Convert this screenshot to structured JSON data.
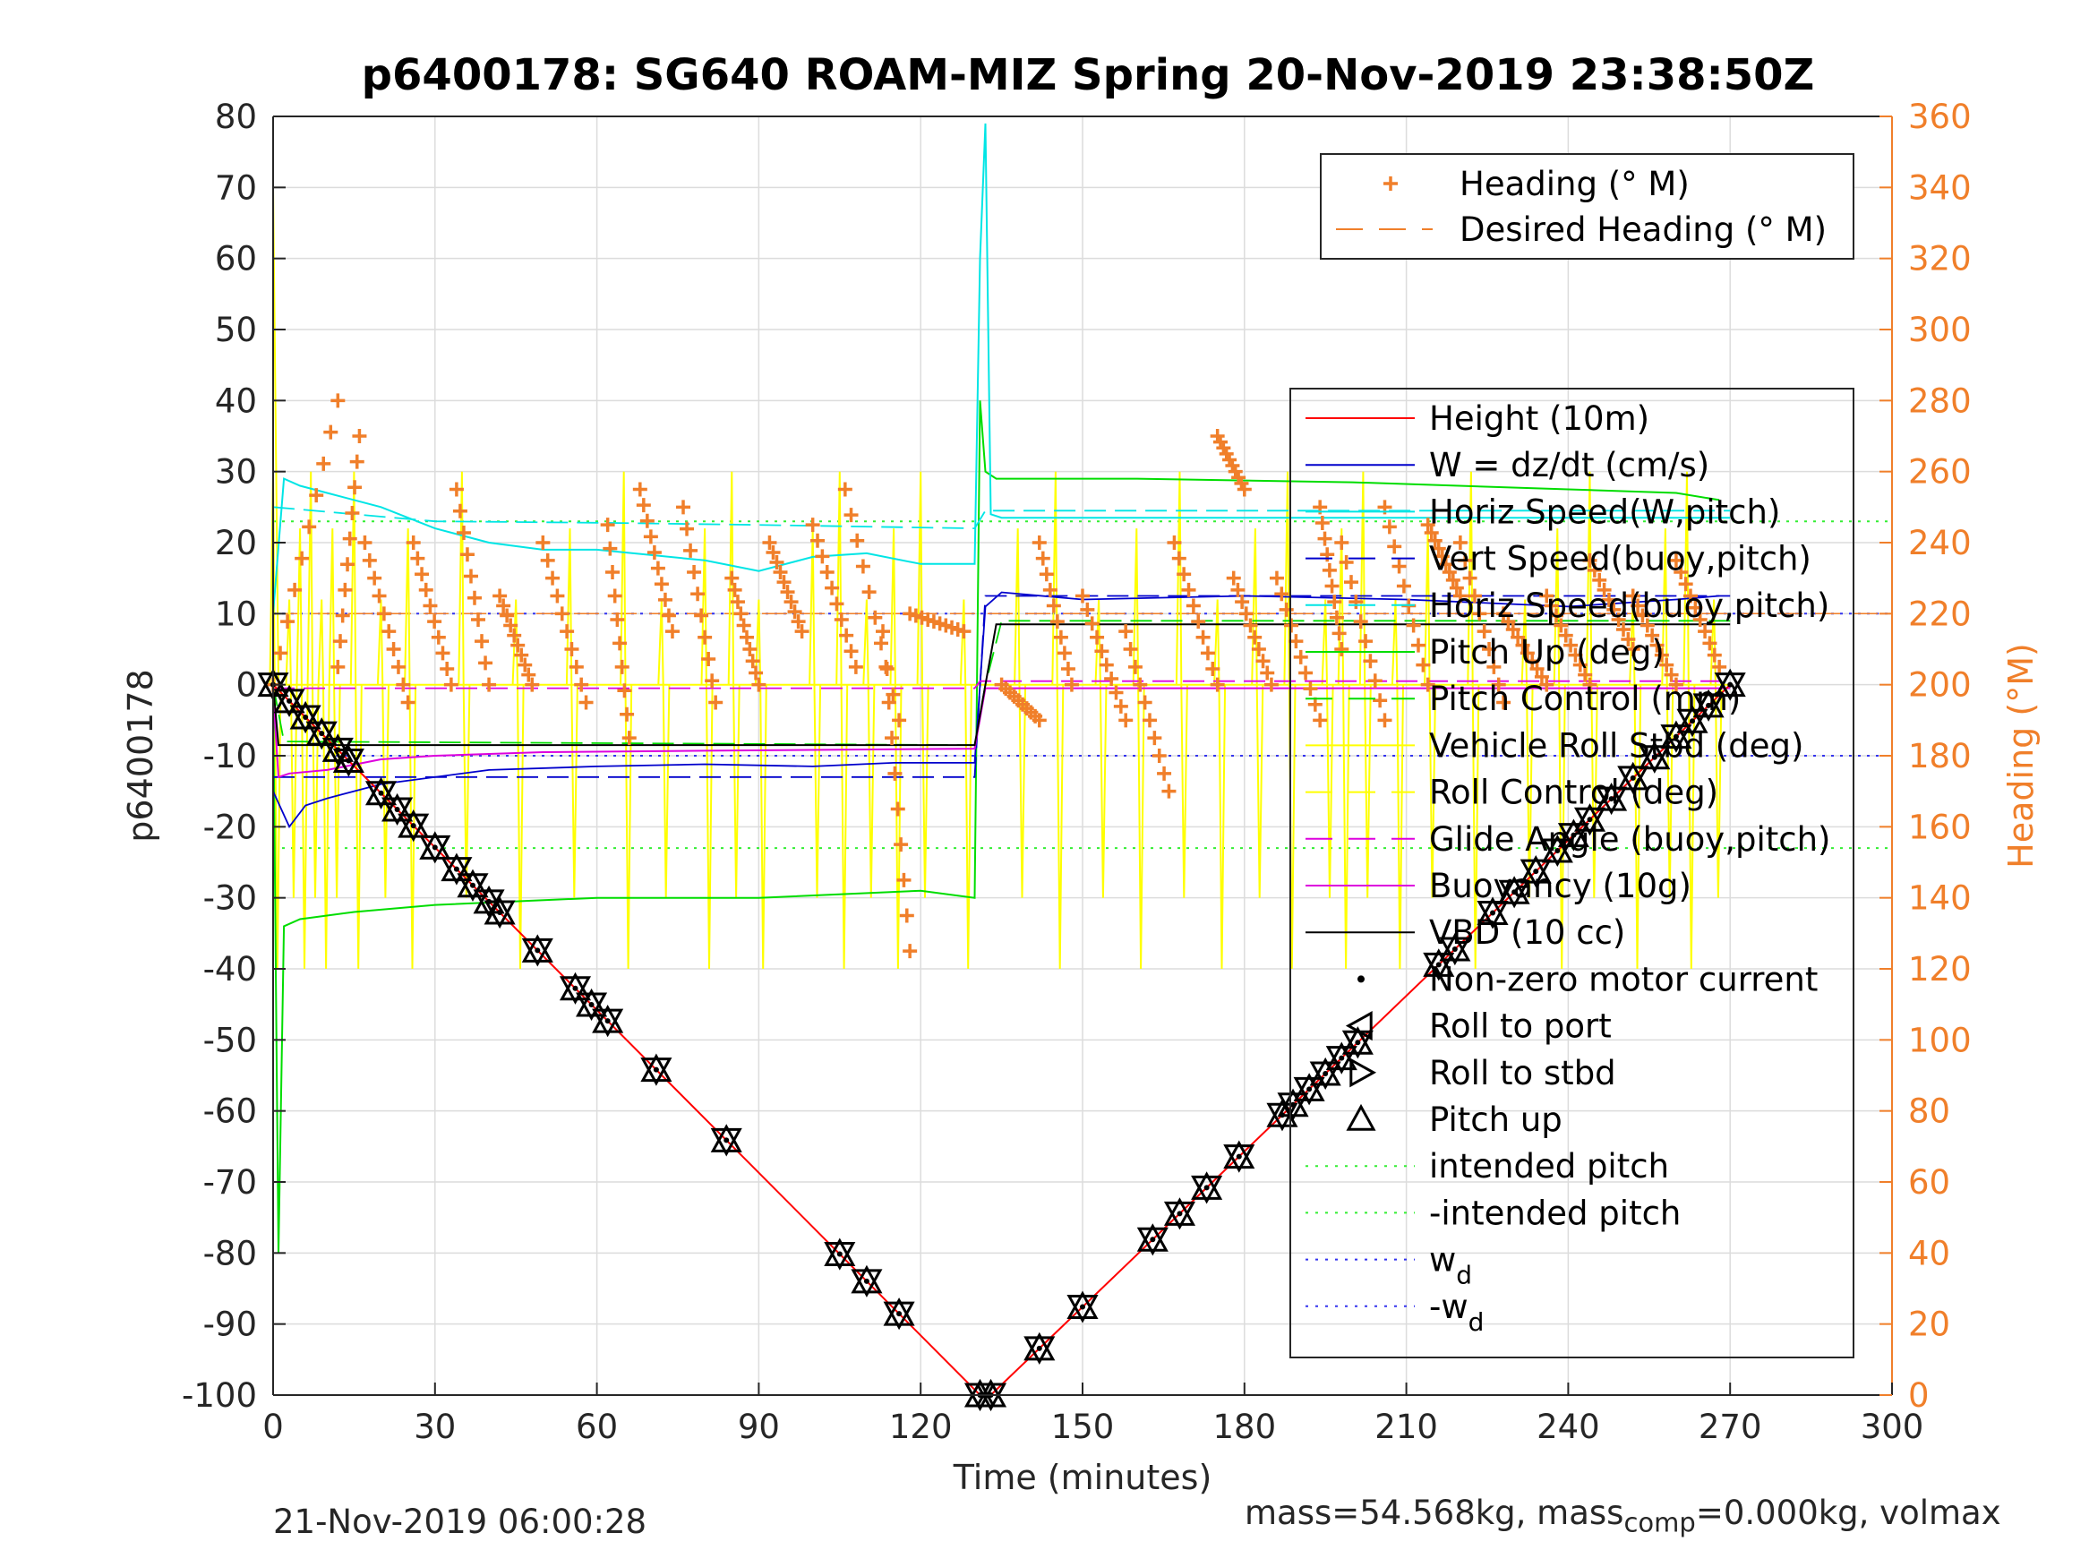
{
  "chart_data": {
    "type": "line",
    "title": "p6400178: SG640 ROAM-MIZ Spring 20-Nov-2019 23:38:50Z",
    "xlabel": "Time (minutes)",
    "ylabel_left": "p6400178",
    "ylabel_right": "Heading (°M)",
    "xlim": [
      0,
      300
    ],
    "ylim_left": [
      -100,
      80
    ],
    "ylim_right": [
      0,
      360
    ],
    "x_ticks": [
      0,
      30,
      60,
      90,
      120,
      150,
      180,
      210,
      240,
      270,
      300
    ],
    "y_ticks_left": [
      80,
      70,
      60,
      50,
      40,
      30,
      20,
      10,
      0,
      -10,
      -20,
      -30,
      -40,
      -50,
      -60,
      -70,
      -80,
      -90,
      -100
    ],
    "y_ticks_right": [
      360,
      340,
      320,
      300,
      280,
      260,
      240,
      220,
      200,
      180,
      160,
      140,
      120,
      100,
      80,
      60,
      40,
      20,
      0
    ],
    "grid": true,
    "legend_top": {
      "placement": "top-right",
      "entries": [
        {
          "label": "Heading (° M)",
          "color": "#F07F2A",
          "style": "plus"
        },
        {
          "label": "Desired Heading (° M)",
          "color": "#F07F2A",
          "style": "dash"
        }
      ]
    },
    "legend_main": {
      "placement": "right",
      "entries": [
        {
          "label": "Height (10m)",
          "color": "#FF0000",
          "style": "line"
        },
        {
          "label": "W = dz/dt (cm/s)",
          "color": "#0000CC",
          "style": "line"
        },
        {
          "label": "Horiz Speed(W,pitch)",
          "color": "#00E5E5",
          "style": "line"
        },
        {
          "label": "Vert Speed(buoy,pitch)",
          "color": "#0000CC",
          "style": "dash"
        },
        {
          "label": "Horiz Speed(buoy,pitch)",
          "color": "#00E5E5",
          "style": "dash"
        },
        {
          "label": "Pitch Up (deg)",
          "color": "#00DD00",
          "style": "line"
        },
        {
          "label": "Pitch Control (mm)",
          "color": "#00DD00",
          "style": "dash"
        },
        {
          "label": "Vehicle Roll Stbd (deg)",
          "color": "#FFFF00",
          "style": "line"
        },
        {
          "label": "Roll Control (deg)",
          "color": "#FFFF00",
          "style": "dash"
        },
        {
          "label": "Glide Angle (buoy,pitch)",
          "color": "#DD00DD",
          "style": "dash"
        },
        {
          "label": "Buoyancy (10g)",
          "color": "#DD00DD",
          "style": "line"
        },
        {
          "label": "VBD (10 cc)",
          "color": "#000000",
          "style": "line"
        },
        {
          "label": "Non-zero motor current",
          "color": "#000000",
          "style": "dot"
        },
        {
          "label": "Roll to port",
          "color": "#000000",
          "style": "tri-left"
        },
        {
          "label": "Roll to stbd",
          "color": "#000000",
          "style": "tri-right"
        },
        {
          "label": "Pitch up",
          "color": "#000000",
          "style": "tri-up"
        },
        {
          "label": "intended pitch",
          "color": "#33EE33",
          "style": "dotted"
        },
        {
          "label": "-intended pitch",
          "color": "#33EE33",
          "style": "dotted"
        },
        {
          "label": "w",
          "sub": "d",
          "color": "#3333EE",
          "style": "dotted"
        },
        {
          "label": "-w",
          "sub": "d",
          "color": "#3333EE",
          "style": "dotted"
        }
      ]
    },
    "series": {
      "height": {
        "x": [
          0,
          131,
          132,
          133,
          270
        ],
        "y": [
          0,
          -100,
          -100,
          -100,
          0
        ]
      },
      "vbd": {
        "x": [
          0,
          1,
          130,
          132,
          134,
          270
        ],
        "y": [
          0,
          -8.5,
          -8.5,
          0,
          8.5,
          8.5
        ]
      },
      "buoyancy": {
        "x": [
          0,
          1,
          3,
          10,
          20,
          30,
          50,
          80,
          130,
          132,
          270
        ],
        "y": [
          -1,
          -13,
          -12.5,
          -12,
          -10.5,
          -10,
          -9.5,
          -9.3,
          -9.0,
          -0.5,
          -0.5
        ]
      },
      "glide_angle": {
        "x": [
          0,
          130,
          131,
          270
        ],
        "y": [
          -0.5,
          -0.5,
          0.5,
          0.5
        ]
      },
      "w": {
        "x": [
          0,
          3,
          6,
          10,
          20,
          40,
          60,
          80,
          100,
          115,
          130,
          132,
          135,
          150,
          180,
          210,
          240,
          260,
          268
        ],
        "y": [
          -15,
          -20,
          -17,
          -16,
          -14,
          -12,
          -11.5,
          -11.2,
          -11.5,
          -11,
          -11,
          11,
          13,
          12,
          12.5,
          12,
          11,
          12,
          12.5
        ]
      },
      "horiz_speed_w": {
        "x": [
          0,
          2,
          5,
          10,
          20,
          30,
          40,
          50,
          60,
          80,
          90,
          100,
          110,
          120,
          130,
          131,
          132,
          133,
          135,
          160,
          270
        ],
        "y": [
          10,
          29,
          28,
          27,
          25,
          22,
          20,
          19,
          19,
          17.5,
          16,
          18,
          18.5,
          17,
          17,
          60,
          79,
          24,
          23.5,
          23.5,
          23.5
        ]
      },
      "horiz_speed_buoy": {
        "x": [
          0,
          30,
          60,
          90,
          130,
          132,
          270
        ],
        "y": [
          25,
          23,
          22.8,
          22.5,
          22,
          24.5,
          24.5
        ]
      },
      "vert_speed_buoy": {
        "x": [
          0,
          130,
          132,
          270
        ],
        "y": [
          -13,
          -13,
          12.5,
          12.5
        ]
      },
      "pitch_up": {
        "x": [
          0,
          1,
          2,
          5,
          15,
          30,
          60,
          90,
          120,
          130,
          131,
          132,
          134,
          160,
          200,
          240,
          260,
          268
        ],
        "y": [
          0,
          -80,
          -34,
          -33,
          -32,
          -31,
          -30,
          -30,
          -29,
          -30,
          40,
          30,
          29,
          29,
          28.5,
          27.5,
          27,
          26
        ]
      },
      "pitch_control": {
        "x": [
          0,
          2,
          130,
          132,
          135,
          270
        ],
        "y": [
          0,
          -8,
          -8.5,
          0,
          9,
          9
        ]
      },
      "intended_pitch": {
        "x": [
          0,
          300
        ],
        "y": [
          23,
          23
        ]
      },
      "neg_intended_pitch": {
        "x": [
          0,
          300
        ],
        "y": [
          -23,
          -23
        ]
      },
      "w_d": {
        "x": [
          0,
          300
        ],
        "y": [
          10,
          10
        ]
      },
      "neg_w_d": {
        "x": [
          0,
          300
        ],
        "y": [
          -10,
          -10
        ]
      },
      "desired_heading": {
        "x": [
          0,
          300
        ],
        "y": [
          220,
          220
        ]
      },
      "roll_spikes_x": [
        0,
        3,
        5,
        7,
        9,
        11,
        15,
        20,
        25,
        35,
        45,
        55,
        65,
        72,
        80,
        85,
        90,
        100,
        105,
        110,
        115,
        120,
        128,
        138,
        145,
        153,
        160,
        168,
        175,
        182,
        188,
        195,
        198,
        202,
        208,
        214,
        222,
        232,
        238,
        244,
        252,
        258,
        262,
        267
      ],
      "heading_segments": [
        {
          "x": [
            0,
            12
          ],
          "y": [
            200,
            280
          ]
        },
        {
          "x": [
            12,
            16
          ],
          "y": [
            205,
            270
          ]
        },
        {
          "x": [
            17,
            25
          ],
          "y": [
            240,
            195
          ]
        },
        {
          "x": [
            26,
            33
          ],
          "y": [
            240,
            200
          ]
        },
        {
          "x": [
            34,
            40
          ],
          "y": [
            255,
            200
          ]
        },
        {
          "x": [
            42,
            48
          ],
          "y": [
            225,
            200
          ]
        },
        {
          "x": [
            50,
            58
          ],
          "y": [
            240,
            195
          ]
        },
        {
          "x": [
            62,
            66
          ],
          "y": [
            245,
            185
          ]
        },
        {
          "x": [
            68,
            74
          ],
          "y": [
            255,
            215
          ]
        },
        {
          "x": [
            76,
            82
          ],
          "y": [
            250,
            195
          ]
        },
        {
          "x": [
            85,
            90
          ],
          "y": [
            230,
            200
          ]
        },
        {
          "x": [
            92,
            98
          ],
          "y": [
            240,
            215
          ]
        },
        {
          "x": [
            100,
            108
          ],
          "y": [
            245,
            205
          ]
        },
        {
          "x": [
            106,
            116
          ],
          "y": [
            255,
            190
          ]
        },
        {
          "x": [
            113,
            118
          ],
          "y": [
            215,
            125
          ]
        },
        {
          "x": [
            118,
            128
          ],
          "y": [
            220,
            215
          ]
        },
        {
          "x": [
            135,
            142
          ],
          "y": [
            200,
            190
          ]
        },
        {
          "x": [
            142,
            148
          ],
          "y": [
            240,
            200
          ]
        },
        {
          "x": [
            150,
            158
          ],
          "y": [
            225,
            190
          ]
        },
        {
          "x": [
            158,
            166
          ],
          "y": [
            215,
            170
          ]
        },
        {
          "x": [
            167,
            175
          ],
          "y": [
            240,
            200
          ]
        },
        {
          "x": [
            175,
            180
          ],
          "y": [
            270,
            255
          ]
        },
        {
          "x": [
            178,
            185
          ],
          "y": [
            230,
            200
          ]
        },
        {
          "x": [
            186,
            194
          ],
          "y": [
            230,
            190
          ]
        },
        {
          "x": [
            194,
            198
          ],
          "y": [
            250,
            210
          ]
        },
        {
          "x": [
            198,
            206
          ],
          "y": [
            240,
            190
          ]
        },
        {
          "x": [
            206,
            214
          ],
          "y": [
            250,
            200
          ]
        },
        {
          "x": [
            214,
            220
          ],
          "y": [
            245,
            225
          ]
        },
        {
          "x": [
            220,
            228
          ],
          "y": [
            240,
            195
          ]
        },
        {
          "x": [
            228,
            236
          ],
          "y": [
            220,
            200
          ]
        },
        {
          "x": [
            236,
            244
          ],
          "y": [
            225,
            200
          ]
        },
        {
          "x": [
            244,
            252
          ],
          "y": [
            235,
            210
          ]
        },
        {
          "x": [
            252,
            260
          ],
          "y": [
            225,
            200
          ]
        },
        {
          "x": [
            260,
            268
          ],
          "y": [
            235,
            205
          ]
        }
      ],
      "pitch_markers_down": [
        0,
        3,
        6,
        9,
        12,
        14,
        20,
        23,
        26,
        30,
        34,
        37,
        40,
        42,
        49,
        56,
        59,
        62,
        71,
        84,
        105,
        110,
        116,
        131
      ],
      "pitch_markers_up": [
        133,
        142,
        150,
        163,
        168,
        173,
        179,
        187,
        189,
        192,
        195,
        198,
        201,
        216,
        219,
        226,
        230,
        234,
        238,
        241,
        244,
        248,
        252,
        256,
        260,
        263,
        266,
        270
      ]
    }
  },
  "footer": {
    "timestamp": "21-Nov-2019 06:00:28",
    "mass_prefix": "mass=54.568kg, mass",
    "mass_sub": "comp",
    "mass_suffix": "=0.000kg, volmax"
  }
}
